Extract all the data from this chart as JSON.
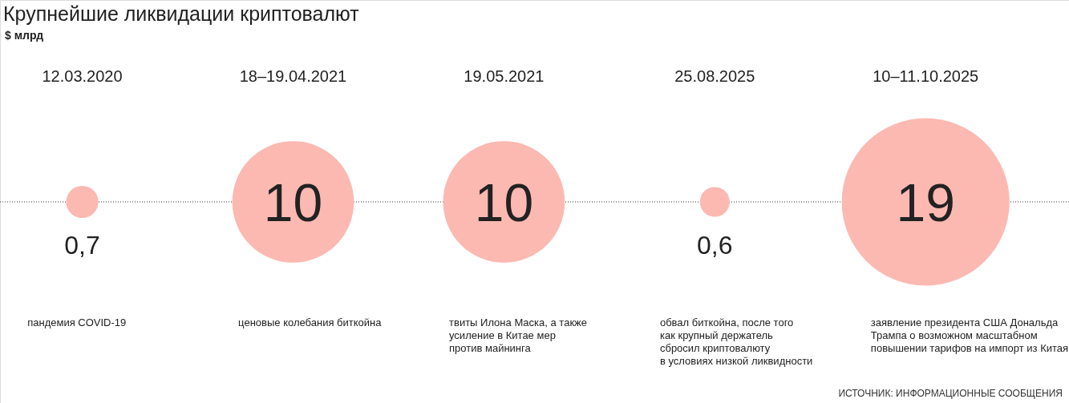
{
  "chart_data": {
    "type": "other",
    "title": "Крупнейшие ликвидации криптовалют",
    "subtitle": "$ млрд",
    "categories": [
      "12.03.2020",
      "18–19.04.2021",
      "19.05.2021",
      "25.08.2025",
      "10–11.10.2025"
    ],
    "values": [
      0.7,
      10,
      10,
      0.6,
      19
    ],
    "value_labels": [
      "0,7",
      "10",
      "10",
      "0,6",
      "19"
    ],
    "color": "#fbb9b2",
    "annotations": [
      {
        "text": "пандемия COVID-19",
        "x": "12.03.2020"
      },
      {
        "text": "ценовые колебания биткойна",
        "x": "18–19.04.2021"
      },
      {
        "text": "твиты Илона Маска, а также\nусиление в Китае мер\nпротив майнинга",
        "x": "19.05.2021"
      },
      {
        "text": "обвал биткойна, после того\nкак крупный держатель\nсбросил криптовалюту\nв условиях низкой ликвидности",
        "x": "25.08.2025"
      },
      {
        "text": "заявление президента США Дональда\nТрампа о возможном масштабном\nповышении тарифов на импорт из Китая",
        "x": "10–11.10.2025"
      },
      "ИСТОЧНИК: ИНФОРМАЦИОННЫЕ СООБЩЕНИЯ"
    ]
  }
}
